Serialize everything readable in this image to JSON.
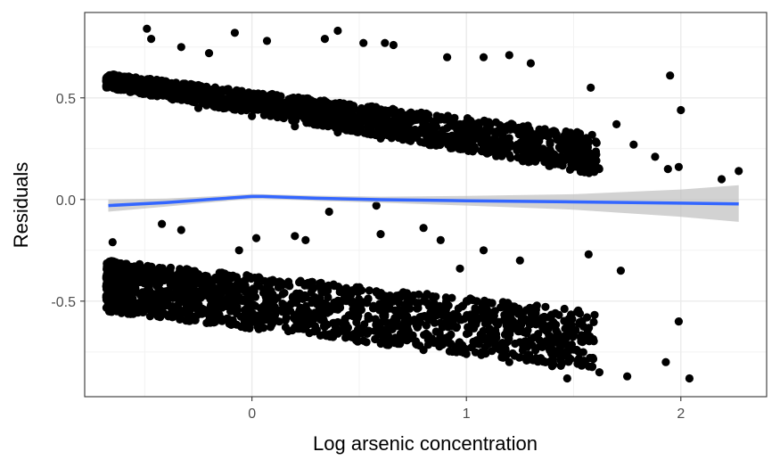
{
  "chart_data": {
    "type": "scatter",
    "title": "",
    "xlabel": "Log arsenic concentration",
    "ylabel": "Residuals",
    "xlim": [
      -0.78,
      2.4
    ],
    "ylim": [
      -0.97,
      0.92
    ],
    "grid": true,
    "theme": "bw",
    "x_ticks": [
      {
        "value": 0,
        "label": "0"
      },
      {
        "value": 1,
        "label": "1"
      },
      {
        "value": 2,
        "label": "2"
      }
    ],
    "y_ticks": [
      {
        "value": -0.5,
        "label": "-0.5"
      },
      {
        "value": 0.0,
        "label": "0.0"
      },
      {
        "value": 0.5,
        "label": "0.5"
      }
    ],
    "point_color": "#000000",
    "smooth_color": "#3366ff",
    "band_color": "#bfbfbf",
    "points": [
      [
        -0.49,
        0.84
      ],
      [
        -0.47,
        0.79
      ],
      [
        -0.33,
        0.75
      ],
      [
        -0.2,
        0.72
      ],
      [
        -0.08,
        0.82
      ],
      [
        0.07,
        0.78
      ],
      [
        0.34,
        0.79
      ],
      [
        0.4,
        0.83
      ],
      [
        0.52,
        0.77
      ],
      [
        0.62,
        0.77
      ],
      [
        0.66,
        0.76
      ],
      [
        0.91,
        0.7
      ],
      [
        1.08,
        0.7
      ],
      [
        1.2,
        0.71
      ],
      [
        1.3,
        0.67
      ],
      [
        1.58,
        0.55
      ],
      [
        1.95,
        0.61
      ],
      [
        2.0,
        0.44
      ],
      [
        1.7,
        0.37
      ],
      [
        1.78,
        0.27
      ],
      [
        1.88,
        0.21
      ],
      [
        1.94,
        0.15
      ],
      [
        1.99,
        0.16
      ],
      [
        2.19,
        0.1
      ],
      [
        2.27,
        0.14
      ],
      [
        -0.67,
        0.6
      ],
      [
        -0.6,
        0.55
      ],
      [
        -0.5,
        0.52
      ],
      [
        -0.38,
        0.5
      ],
      [
        -0.25,
        0.45
      ],
      [
        0.0,
        0.41
      ],
      [
        0.2,
        0.36
      ],
      [
        0.4,
        0.33
      ],
      [
        0.6,
        0.3
      ],
      [
        0.8,
        0.28
      ],
      [
        1.0,
        0.25
      ],
      [
        1.2,
        0.22
      ],
      [
        1.4,
        0.2
      ],
      [
        1.6,
        0.17
      ],
      [
        -0.65,
        -0.21
      ],
      [
        -0.42,
        -0.12
      ],
      [
        -0.33,
        -0.15
      ],
      [
        -0.06,
        -0.25
      ],
      [
        0.02,
        -0.19
      ],
      [
        0.2,
        -0.18
      ],
      [
        0.25,
        -0.2
      ],
      [
        0.36,
        -0.06
      ],
      [
        0.58,
        -0.03
      ],
      [
        0.6,
        -0.17
      ],
      [
        0.8,
        -0.14
      ],
      [
        0.88,
        -0.2
      ],
      [
        0.97,
        -0.34
      ],
      [
        1.08,
        -0.25
      ],
      [
        1.25,
        -0.3
      ],
      [
        1.57,
        -0.27
      ],
      [
        1.72,
        -0.35
      ],
      [
        1.99,
        -0.6
      ],
      [
        2.04,
        -0.88
      ],
      [
        1.93,
        -0.8
      ],
      [
        1.75,
        -0.87
      ],
      [
        1.62,
        -0.85
      ],
      [
        1.52,
        -0.79
      ],
      [
        1.47,
        -0.88
      ],
      [
        -0.67,
        -0.42
      ],
      [
        -0.5,
        -0.46
      ],
      [
        -0.3,
        -0.5
      ],
      [
        -0.1,
        -0.55
      ],
      [
        0.0,
        -0.6
      ],
      [
        0.2,
        -0.63
      ],
      [
        0.4,
        -0.66
      ],
      [
        0.6,
        -0.7
      ],
      [
        0.8,
        -0.74
      ],
      [
        1.0,
        -0.76
      ],
      [
        1.2,
        -0.8
      ],
      [
        1.4,
        -0.82
      ]
    ],
    "upper_band": {
      "x_range": [
        -0.68,
        1.62
      ],
      "start": [
        0.62,
        0.55
      ],
      "end": [
        0.32,
        0.12
      ],
      "n": 1600
    },
    "lower_band": {
      "x_range": [
        -0.68,
        1.6
      ],
      "start": [
        -0.3,
        -0.55
      ],
      "end": [
        -0.55,
        -0.84
      ],
      "n": 1500
    },
    "smooth": {
      "x": [
        -0.67,
        -0.4,
        -0.2,
        0.0,
        0.05,
        0.3,
        0.6,
        1.0,
        1.5,
        2.0,
        2.27
      ],
      "y": [
        -0.03,
        -0.015,
        0.0,
        0.015,
        0.015,
        0.006,
        -0.001,
        -0.006,
        -0.012,
        -0.018,
        -0.022
      ],
      "band_lower": [
        -0.06,
        -0.035,
        -0.015,
        0.003,
        0.004,
        -0.007,
        -0.016,
        -0.03,
        -0.05,
        -0.085,
        -0.11
      ],
      "band_upper": [
        0.0,
        0.005,
        0.015,
        0.027,
        0.026,
        0.019,
        0.014,
        0.018,
        0.026,
        0.049,
        0.07
      ]
    }
  }
}
